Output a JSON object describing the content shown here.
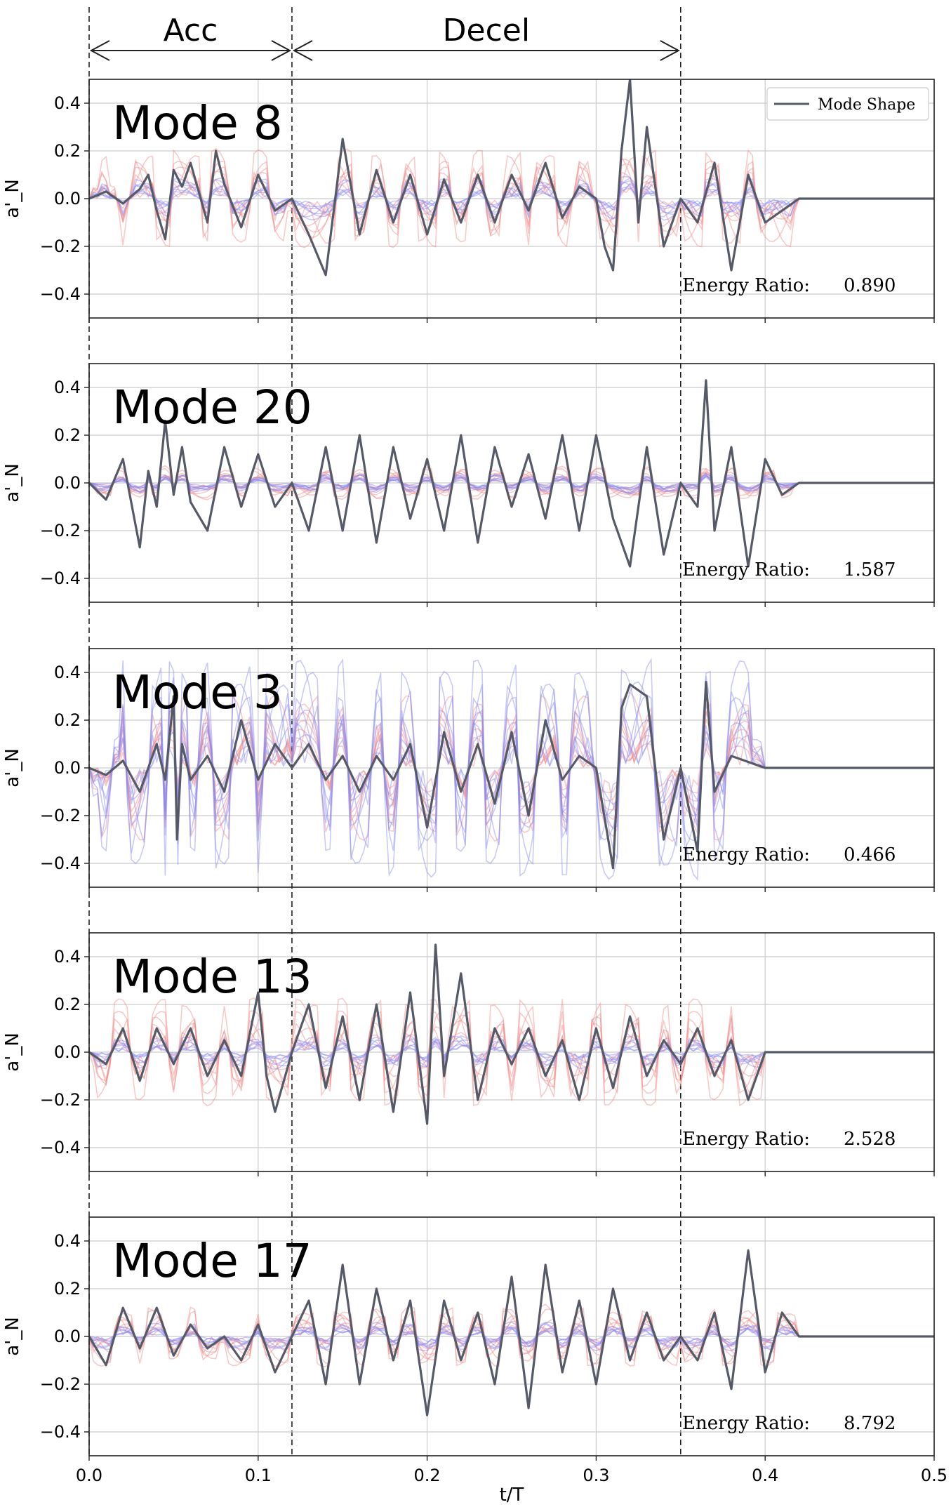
{
  "chart_data": {
    "type": "line",
    "xlabel": "t/T",
    "ylabel": "a'_N",
    "xlim": [
      0.0,
      0.5
    ],
    "ylim": [
      -0.5,
      0.5
    ],
    "x_ticks": [
      "0.0",
      "0.1",
      "0.2",
      "0.3",
      "0.4",
      "0.5"
    ],
    "y_ticks": [
      "0.4",
      "0.2",
      "0.0",
      "−0.2",
      "−0.4"
    ],
    "grid": true,
    "phase_boundaries": [
      0.0,
      0.12,
      0.35
    ],
    "phase_labels": [
      {
        "label": "Acc",
        "x_start": 0.0,
        "x_end": 0.12
      },
      {
        "label": "Decel",
        "x_start": 0.12,
        "x_end": 0.35
      }
    ],
    "legend": {
      "entries": [
        "Mode Shape"
      ],
      "placement": "top-right"
    },
    "colors": {
      "mode_shape": "#555a66",
      "realization_red": "#f08a8a",
      "realization_blue": "#8a8af0",
      "grid": "#cccccc"
    },
    "panels": [
      {
        "title": "Mode 8",
        "energy_label": "Energy Ratio:",
        "energy_value": "0.890",
        "mode_shape": {
          "x": [
            0.0,
            0.01,
            0.02,
            0.03,
            0.035,
            0.04,
            0.045,
            0.05,
            0.055,
            0.06,
            0.07,
            0.075,
            0.08,
            0.09,
            0.1,
            0.11,
            0.12,
            0.13,
            0.14,
            0.15,
            0.16,
            0.17,
            0.18,
            0.19,
            0.2,
            0.21,
            0.22,
            0.23,
            0.24,
            0.25,
            0.26,
            0.27,
            0.28,
            0.29,
            0.3,
            0.305,
            0.31,
            0.315,
            0.32,
            0.325,
            0.33,
            0.34,
            0.35,
            0.36,
            0.37,
            0.38,
            0.39,
            0.4,
            0.42,
            0.45,
            0.5
          ],
          "y": [
            0.0,
            0.03,
            -0.02,
            0.04,
            0.1,
            -0.05,
            -0.17,
            0.12,
            0.05,
            0.15,
            -0.1,
            0.2,
            0.06,
            -0.12,
            0.1,
            -0.05,
            0.0,
            -0.15,
            -0.32,
            0.25,
            -0.15,
            0.12,
            -0.1,
            0.1,
            -0.15,
            0.08,
            -0.1,
            0.1,
            -0.1,
            0.1,
            -0.05,
            0.15,
            -0.08,
            0.05,
            0.0,
            -0.2,
            -0.3,
            0.2,
            0.5,
            -0.1,
            0.3,
            -0.2,
            0.0,
            -0.1,
            0.15,
            -0.3,
            0.1,
            -0.1,
            0.0,
            0.0,
            0.0
          ]
        },
        "realizations_red_amplitude": 0.2,
        "realizations_blue_amplitude": 0.08
      },
      {
        "title": "Mode 20",
        "energy_label": "Energy Ratio:",
        "energy_value": "1.587",
        "mode_shape": {
          "x": [
            0.0,
            0.01,
            0.02,
            0.03,
            0.035,
            0.04,
            0.045,
            0.05,
            0.055,
            0.06,
            0.07,
            0.08,
            0.09,
            0.1,
            0.11,
            0.12,
            0.13,
            0.14,
            0.15,
            0.16,
            0.17,
            0.18,
            0.19,
            0.2,
            0.21,
            0.22,
            0.23,
            0.24,
            0.25,
            0.26,
            0.27,
            0.28,
            0.29,
            0.3,
            0.31,
            0.32,
            0.33,
            0.34,
            0.35,
            0.36,
            0.365,
            0.37,
            0.38,
            0.39,
            0.4,
            0.41,
            0.42,
            0.45,
            0.5
          ],
          "y": [
            0.0,
            -0.07,
            0.1,
            -0.27,
            0.05,
            -0.1,
            0.26,
            -0.05,
            0.15,
            -0.08,
            -0.2,
            0.15,
            -0.1,
            0.12,
            -0.1,
            0.0,
            -0.2,
            0.15,
            -0.2,
            0.2,
            -0.25,
            0.15,
            -0.15,
            0.1,
            -0.2,
            0.2,
            -0.25,
            0.15,
            -0.1,
            0.12,
            -0.15,
            0.2,
            -0.2,
            0.2,
            -0.15,
            -0.35,
            0.15,
            -0.3,
            0.0,
            -0.1,
            0.43,
            -0.2,
            0.15,
            -0.35,
            0.1,
            -0.05,
            0.0,
            0.0,
            0.0
          ]
        },
        "realizations_red_amplitude": 0.06,
        "realizations_blue_amplitude": 0.03
      },
      {
        "title": "Mode 3",
        "energy_label": "Energy Ratio:",
        "energy_value": "0.466",
        "mode_shape": {
          "x": [
            0.0,
            0.01,
            0.02,
            0.03,
            0.04,
            0.045,
            0.05,
            0.052,
            0.055,
            0.06,
            0.07,
            0.08,
            0.09,
            0.1,
            0.11,
            0.12,
            0.13,
            0.14,
            0.15,
            0.16,
            0.17,
            0.18,
            0.19,
            0.2,
            0.21,
            0.22,
            0.23,
            0.24,
            0.25,
            0.26,
            0.27,
            0.28,
            0.29,
            0.3,
            0.31,
            0.315,
            0.32,
            0.33,
            0.34,
            0.35,
            0.36,
            0.365,
            0.37,
            0.38,
            0.4,
            0.42,
            0.45,
            0.5
          ],
          "y": [
            0.0,
            -0.03,
            0.03,
            -0.1,
            0.1,
            -0.05,
            0.3,
            -0.3,
            0.1,
            -0.05,
            0.05,
            -0.1,
            0.2,
            -0.05,
            0.1,
            0.0,
            0.1,
            -0.05,
            0.05,
            -0.1,
            0.05,
            -0.05,
            0.1,
            -0.25,
            0.15,
            -0.1,
            0.1,
            -0.15,
            0.15,
            -0.2,
            0.2,
            -0.05,
            0.05,
            0.0,
            -0.42,
            0.25,
            0.35,
            0.3,
            -0.3,
            0.0,
            -0.35,
            0.36,
            -0.1,
            0.05,
            0.0,
            0.0,
            0.0,
            0.0
          ]
        },
        "realizations_red_amplitude": 0.3,
        "realizations_blue_amplitude": 0.45
      },
      {
        "title": "Mode 13",
        "energy_label": "Energy Ratio:",
        "energy_value": "2.528",
        "mode_shape": {
          "x": [
            0.0,
            0.01,
            0.02,
            0.03,
            0.04,
            0.05,
            0.06,
            0.07,
            0.08,
            0.09,
            0.1,
            0.105,
            0.11,
            0.12,
            0.13,
            0.14,
            0.15,
            0.16,
            0.17,
            0.18,
            0.19,
            0.2,
            0.205,
            0.21,
            0.22,
            0.23,
            0.24,
            0.25,
            0.26,
            0.27,
            0.28,
            0.29,
            0.3,
            0.31,
            0.32,
            0.33,
            0.34,
            0.35,
            0.36,
            0.37,
            0.38,
            0.39,
            0.4,
            0.42,
            0.45,
            0.5
          ],
          "y": [
            0.0,
            -0.05,
            0.1,
            -0.12,
            0.1,
            -0.05,
            0.1,
            -0.1,
            0.05,
            -0.1,
            0.25,
            -0.1,
            -0.25,
            0.0,
            0.2,
            -0.15,
            0.15,
            -0.2,
            0.2,
            -0.25,
            0.25,
            -0.3,
            0.45,
            -0.1,
            0.33,
            -0.2,
            0.1,
            -0.05,
            0.1,
            -0.1,
            0.05,
            -0.2,
            0.1,
            -0.15,
            0.15,
            -0.1,
            0.05,
            -0.05,
            0.1,
            -0.1,
            0.05,
            -0.2,
            0.0,
            0.0,
            0.0,
            0.0
          ]
        },
        "realizations_red_amplitude": 0.22,
        "realizations_blue_amplitude": 0.06
      },
      {
        "title": "Mode 17",
        "energy_label": "Energy Ratio:",
        "energy_value": "8.792",
        "mode_shape": {
          "x": [
            0.0,
            0.01,
            0.02,
            0.03,
            0.04,
            0.05,
            0.06,
            0.07,
            0.08,
            0.09,
            0.1,
            0.11,
            0.12,
            0.13,
            0.14,
            0.15,
            0.16,
            0.17,
            0.18,
            0.19,
            0.2,
            0.21,
            0.22,
            0.23,
            0.24,
            0.25,
            0.26,
            0.27,
            0.28,
            0.29,
            0.3,
            0.31,
            0.32,
            0.33,
            0.34,
            0.35,
            0.36,
            0.37,
            0.38,
            0.39,
            0.4,
            0.41,
            0.42,
            0.45,
            0.5
          ],
          "y": [
            0.0,
            -0.12,
            0.12,
            -0.05,
            0.12,
            -0.08,
            0.05,
            -0.05,
            0.0,
            -0.1,
            0.05,
            -0.15,
            0.0,
            0.15,
            -0.2,
            0.3,
            -0.2,
            0.2,
            -0.1,
            0.15,
            -0.33,
            0.15,
            -0.1,
            0.1,
            -0.2,
            0.25,
            -0.3,
            0.3,
            -0.15,
            0.15,
            -0.2,
            0.2,
            -0.1,
            0.1,
            -0.1,
            0.0,
            -0.1,
            0.1,
            -0.22,
            0.36,
            -0.15,
            0.1,
            0.0,
            0.0,
            0.0
          ]
        },
        "realizations_red_amplitude": 0.12,
        "realizations_blue_amplitude": 0.05
      }
    ]
  }
}
